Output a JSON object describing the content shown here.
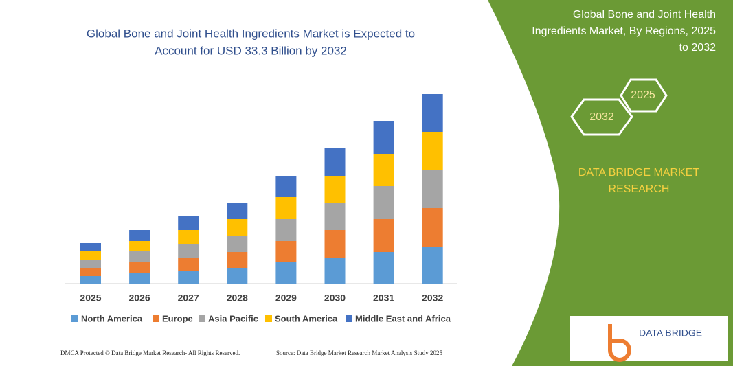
{
  "chart_data": {
    "type": "stacked-bar",
    "title": [
      "Global Bone and Joint Health Ingredients Market is Expected to",
      "Account for USD 33.3 Billion by 2032"
    ],
    "categories": [
      "2025",
      "2026",
      "2027",
      "2028",
      "2029",
      "2030",
      "2031",
      "2032"
    ],
    "series": [
      {
        "name": "North America",
        "color": "#5b9bd5",
        "values": [
          11,
          15,
          19,
          23,
          31,
          38,
          46,
          54
        ]
      },
      {
        "name": "Europe",
        "color": "#ed7d31",
        "values": [
          12,
          16,
          19,
          23,
          31,
          40,
          48,
          56
        ]
      },
      {
        "name": "Asia Pacific",
        "color": "#a5a5a5",
        "values": [
          12,
          16,
          20,
          24,
          32,
          40,
          48,
          55
        ]
      },
      {
        "name": "South America",
        "color": "#ffc000",
        "values": [
          12,
          15,
          20,
          24,
          32,
          39,
          47,
          56
        ]
      },
      {
        "name": "Middle East and Africa",
        "color": "#4472c4",
        "values": [
          12,
          16,
          20,
          24,
          31,
          40,
          48,
          55
        ]
      }
    ]
  },
  "panel": {
    "title": [
      "Global Bone and Joint Health",
      "Ingredients Market, By Regions, 2025",
      "to 2032"
    ],
    "hexagons": [
      "2032",
      "2025"
    ],
    "brand": [
      "DATA BRIDGE MARKET",
      "RESEARCH"
    ],
    "logo": "DATA BRIDGE"
  },
  "footer": {
    "left": "DMCA Protected © Data Bridge Market Research- All Rights Reserved.",
    "right": "Source: Data Bridge Market Research Market Analysis Study 2025"
  }
}
